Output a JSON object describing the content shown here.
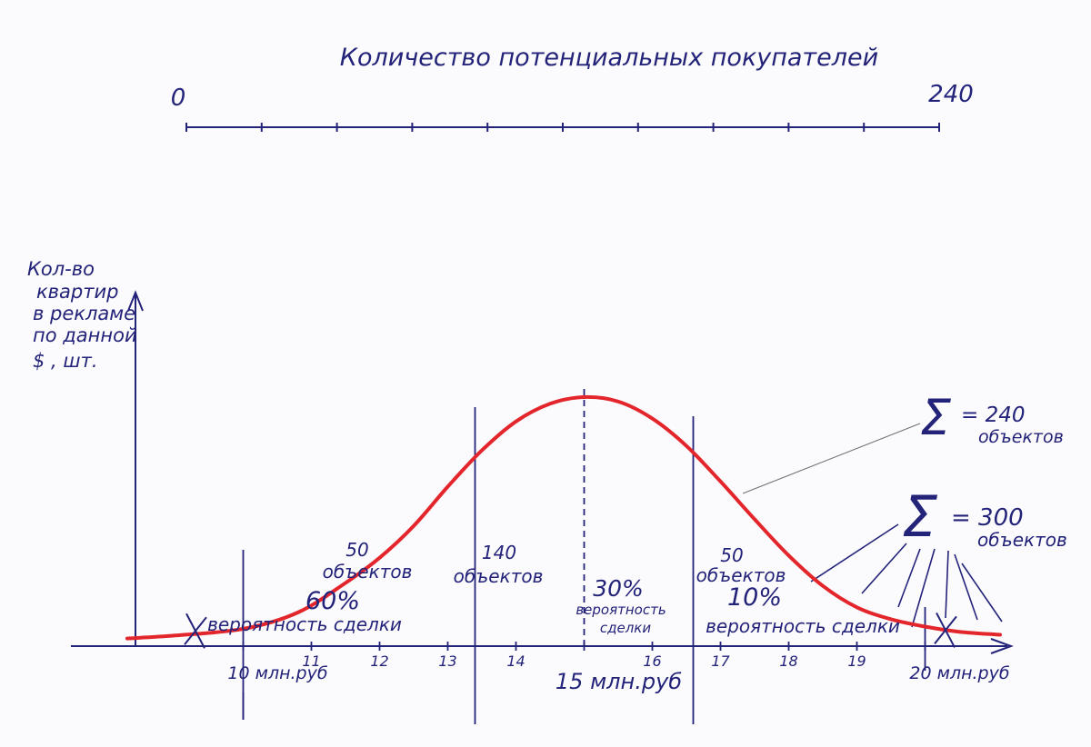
{
  "colors": {
    "ink": "#24237a",
    "curve": "#e3262c",
    "pencil": "#6f6f6f",
    "paper": "#fbfbfd"
  },
  "chart_data": {
    "type": "area",
    "title": "Количество потенциальных покупателей",
    "buyers_scale": {
      "min_label": "0",
      "max_label": "240",
      "min": 0,
      "max": 240
    },
    "ylabel_lines": [
      "Кол-во",
      "квартир",
      "в рекламе",
      "по данной",
      "$ , шт."
    ],
    "x_ticks": [
      {
        "value": 10,
        "label": "10 млн.руб"
      },
      {
        "value": 11,
        "label": "11"
      },
      {
        "value": 12,
        "label": "12"
      },
      {
        "value": 13,
        "label": "13"
      },
      {
        "value": 14,
        "label": "14"
      },
      {
        "value": 15,
        "label": "15 млн.руб"
      },
      {
        "value": 16,
        "label": "16"
      },
      {
        "value": 17,
        "label": "17"
      },
      {
        "value": 18,
        "label": "18"
      },
      {
        "value": 19,
        "label": "19"
      },
      {
        "value": 20,
        "label": "20 млн.руб"
      }
    ],
    "curve": {
      "x": [
        8.3,
        9.0,
        10.0,
        10.8,
        11.5,
        12.0,
        12.5,
        13.0,
        13.5,
        14.0,
        14.5,
        15.0,
        15.5,
        16.0,
        16.5,
        17.0,
        17.5,
        18.0,
        18.5,
        19.0,
        19.5,
        20.0,
        20.5,
        21.1
      ],
      "y": [
        0.3,
        0.7,
        1.6,
        3.8,
        7.8,
        11.2,
        15.5,
        20.8,
        25.7,
        29.6,
        32.0,
        32.9,
        32.3,
        30.0,
        26.3,
        21.5,
        16.4,
        11.5,
        7.4,
        4.5,
        2.9,
        1.9,
        1.2,
        0.8
      ]
    },
    "y_max": 34,
    "x_range": [
      7.3,
      21.5
    ],
    "dividers": [
      {
        "x": 10.0,
        "type": "solid",
        "name": "divider-10"
      },
      {
        "x": 13.4,
        "type": "solid",
        "name": "divider-13-4"
      },
      {
        "x": 15.0,
        "type": "dashed",
        "name": "divider-15-dashed"
      },
      {
        "x": 16.6,
        "type": "solid",
        "name": "divider-16-6"
      },
      {
        "x": 20.0,
        "type": "solid",
        "name": "divider-20"
      }
    ],
    "excluded_marks": [
      {
        "x": 9.3,
        "y": 1.2
      },
      {
        "x": 20.3,
        "y": 1.3
      }
    ],
    "regions": [
      {
        "count": "50",
        "objects": "объектов",
        "probability": "60%",
        "prob_label": "вероятность сделки"
      },
      {
        "count": "140",
        "objects": "объектов",
        "probability": "30%",
        "prob_label_1": "вероятность",
        "prob_label_2": "сделки"
      },
      {
        "count": "50",
        "objects": "объектов",
        "probability": "10%",
        "prob_label": "вероятность сделки"
      }
    ],
    "sums": [
      {
        "symbol": "Σ",
        "value": "= 240",
        "unit": "объектов"
      },
      {
        "symbol": "Σ",
        "value": "= 300",
        "unit": "объектов"
      }
    ]
  }
}
